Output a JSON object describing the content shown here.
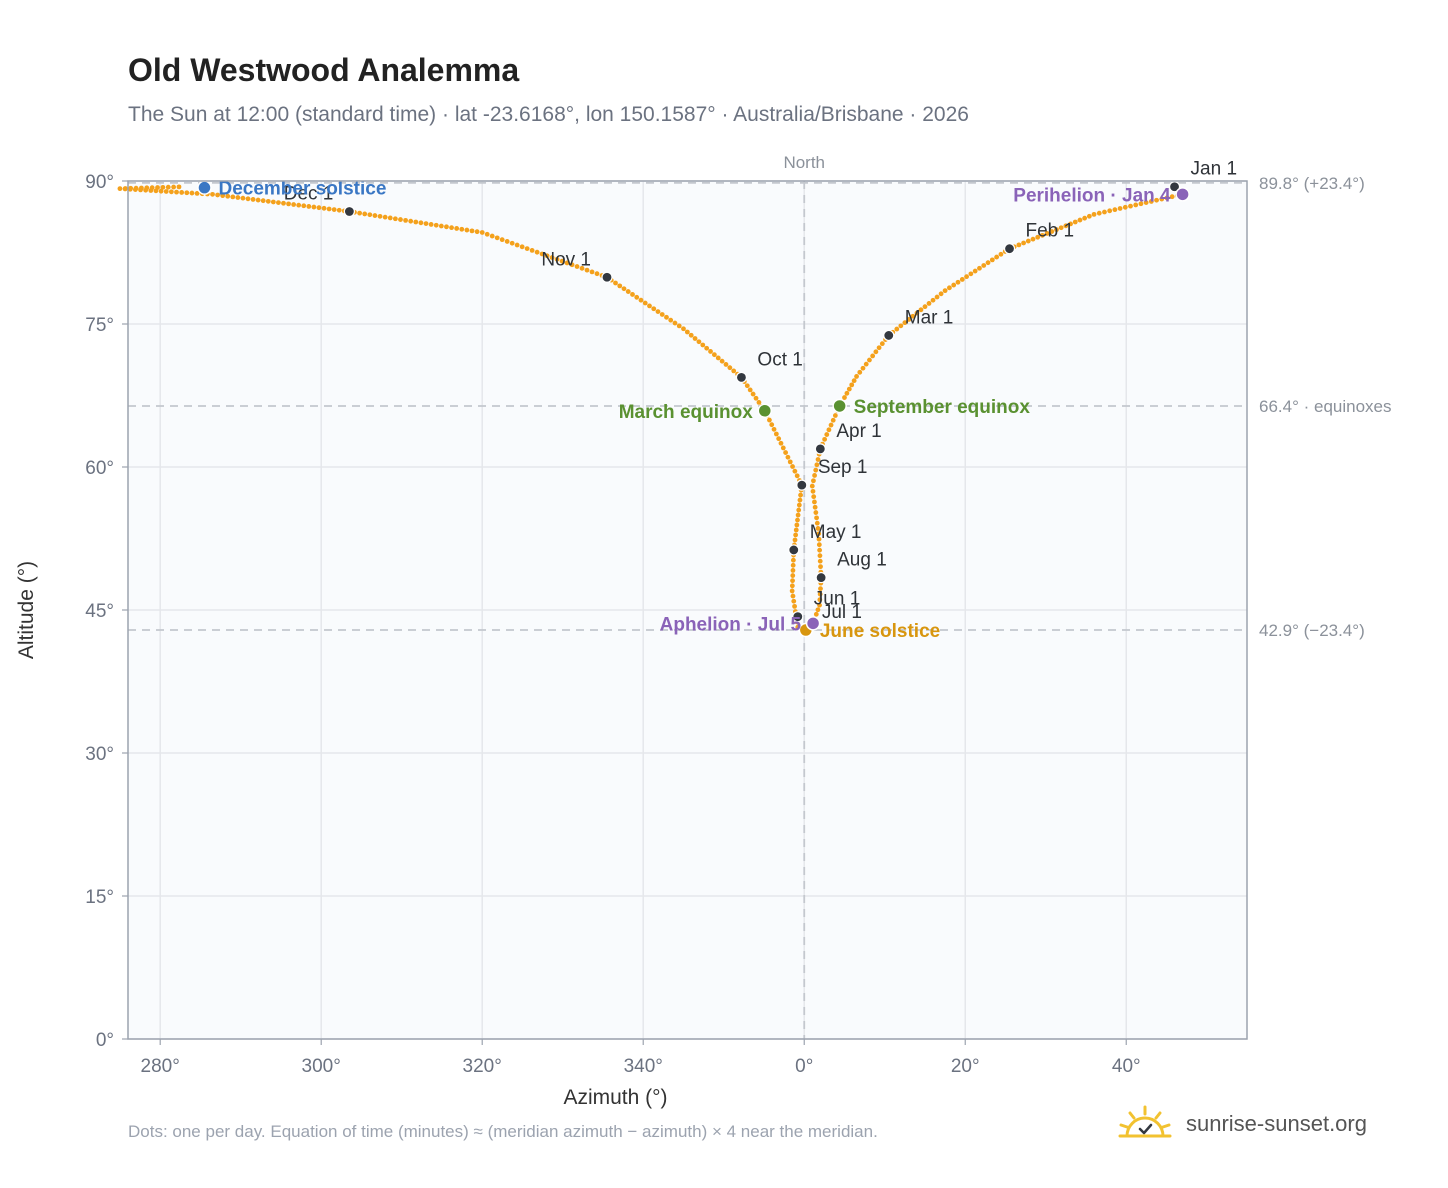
{
  "title": "Old Westwood Analemma",
  "subtitle": "The Sun at 12:00 (standard time) · lat -23.6168°, lon 150.1587° · Australia/Brisbane · 2026",
  "footnote": "Dots: one per day. Equation of time (minutes) ≈ (meridian azimuth − azimuth) × 4 near the meridian.",
  "brand": {
    "name": "sunrise-sunset.org",
    "icon": "sun-logo-icon"
  },
  "colors": {
    "path": "#f4a11c",
    "month_dot": "#333840",
    "december_solstice": "#3a77c4",
    "june_solstice": "#d8960f",
    "equinox": "#5a9131",
    "apsis": "#8a63b8",
    "grid": "#e5e7eb",
    "ref_line": "#c4c8ce",
    "plot_bg": "#f9fbfd",
    "frame": "#9ca3af"
  },
  "chart_data": {
    "type": "scatter",
    "xlabel": "Azimuth (°)",
    "ylabel": "Altitude (°)",
    "xlim": [
      -84,
      55
    ],
    "ylim": [
      0,
      90
    ],
    "x_ticks": [
      -80,
      -60,
      -40,
      -20,
      0,
      20,
      40
    ],
    "x_tick_labels": [
      "280°",
      "300°",
      "320°",
      "340°",
      "0°",
      "20°",
      "40°"
    ],
    "y_ticks": [
      0,
      15,
      30,
      45,
      60,
      75,
      90
    ],
    "y_tick_labels": [
      "0°",
      "15°",
      "30°",
      "45°",
      "60°",
      "75°",
      "90°"
    ],
    "grid": true,
    "meridian_label": "North",
    "reference_lines": [
      {
        "altitude": 89.8,
        "label": "89.8° (+23.4°)"
      },
      {
        "altitude": 66.4,
        "label": "66.4° · equinoxes"
      },
      {
        "altitude": 42.9,
        "label": "42.9° (−23.4°)"
      }
    ],
    "series": [
      {
        "points": [
          [
            46.0,
            89.4
          ],
          [
            47.0,
            88.6
          ],
          [
            36.0,
            86.5
          ],
          [
            25.5,
            82.9
          ],
          [
            17.5,
            78.5
          ],
          [
            10.5,
            73.8
          ],
          [
            6.5,
            69.5
          ],
          [
            4.4,
            66.4
          ],
          [
            2.0,
            61.9
          ],
          [
            1.0,
            58.0
          ],
          [
            1.8,
            53.0
          ],
          [
            2.1,
            48.4
          ],
          [
            1.9,
            45.5
          ],
          [
            1.1,
            43.6
          ],
          [
            0.2,
            42.9
          ],
          [
            -0.8,
            43.2
          ],
          [
            -1.0,
            44.3
          ],
          [
            -1.5,
            47.0
          ],
          [
            -1.3,
            51.3
          ],
          [
            -0.3,
            58.1
          ],
          [
            -2.6,
            62.0
          ],
          [
            -4.9,
            65.9
          ],
          [
            -7.8,
            69.4
          ],
          [
            -15.0,
            74.5
          ],
          [
            -24.5,
            79.9
          ],
          [
            -40.0,
            84.6
          ],
          [
            -56.5,
            86.8
          ],
          [
            -73.5,
            88.6
          ],
          [
            -85.0,
            89.2
          ],
          [
            -77.0,
            89.4
          ]
        ]
      }
    ],
    "markers": [
      {
        "label": "Jan 1",
        "azimuth": 46.0,
        "altitude": 89.4,
        "anchor": "start"
      },
      {
        "label": "Feb 1",
        "azimuth": 25.5,
        "altitude": 82.9,
        "anchor": "start"
      },
      {
        "label": "Mar 1",
        "azimuth": 10.5,
        "altitude": 73.8,
        "anchor": "start"
      },
      {
        "label": "Apr 1",
        "azimuth": 2.0,
        "altitude": 61.9,
        "anchor": "start"
      },
      {
        "label": "May 1",
        "azimuth": -1.3,
        "altitude": 51.3,
        "anchor": "start"
      },
      {
        "label": "Jun 1",
        "azimuth": -0.8,
        "altitude": 44.3,
        "anchor": "start"
      },
      {
        "label": "Jul 1",
        "azimuth": 0.2,
        "altitude": 42.9,
        "anchor": "start"
      },
      {
        "label": "Aug 1",
        "azimuth": 2.1,
        "altitude": 48.4,
        "anchor": "start"
      },
      {
        "label": "Sep 1",
        "azimuth": -0.3,
        "altitude": 58.1,
        "anchor": "start"
      },
      {
        "label": "Oct 1",
        "azimuth": -7.8,
        "altitude": 69.4,
        "anchor": "start"
      },
      {
        "label": "Nov 1",
        "azimuth": -24.5,
        "altitude": 79.9,
        "anchor": "end"
      },
      {
        "label": "Dec 1",
        "azimuth": -56.5,
        "altitude": 86.8,
        "anchor": "end"
      }
    ],
    "events": [
      {
        "label": "December solstice",
        "azimuth": -74.5,
        "altitude": 89.3,
        "kind": "december_solstice",
        "anchor": "start"
      },
      {
        "label": "June solstice",
        "azimuth": 0.2,
        "altitude": 42.9,
        "kind": "june_solstice",
        "anchor": "start"
      },
      {
        "label": "March equinox",
        "azimuth": -4.9,
        "altitude": 65.9,
        "kind": "equinox",
        "anchor": "end"
      },
      {
        "label": "September equinox",
        "azimuth": 4.4,
        "altitude": 66.4,
        "kind": "equinox",
        "anchor": "start"
      },
      {
        "label": "Perihelion · Jan 4",
        "azimuth": 47.0,
        "altitude": 88.6,
        "kind": "apsis",
        "anchor": "end"
      },
      {
        "label": "Aphelion · Jul 5",
        "azimuth": 1.1,
        "altitude": 43.6,
        "kind": "apsis",
        "anchor": "end"
      }
    ]
  }
}
